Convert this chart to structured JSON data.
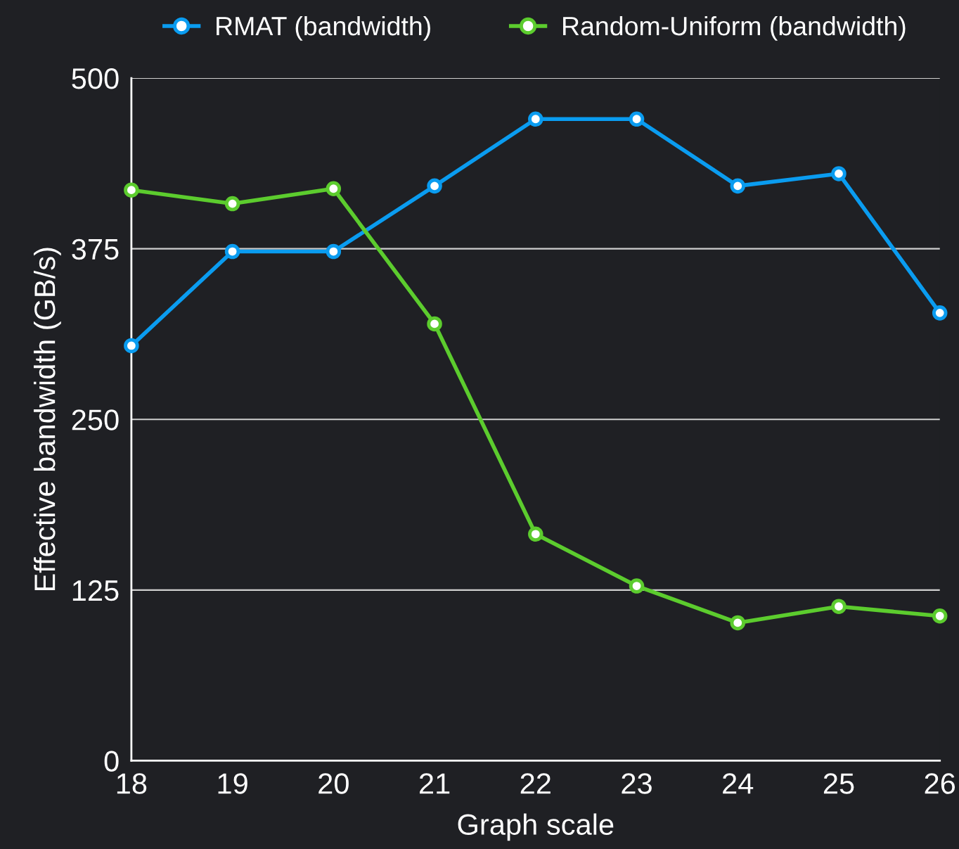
{
  "chart_data": {
    "type": "line",
    "xlabel": "Graph scale",
    "ylabel": "Effective bandwidth (GB/s)",
    "x": [
      18,
      19,
      20,
      21,
      22,
      23,
      24,
      25,
      26
    ],
    "series": [
      {
        "name": "RMAT (bandwidth)",
        "color": "#0a9cf0",
        "values": [
          304,
          373,
          373,
          421,
          470,
          470,
          421,
          430,
          328
        ]
      },
      {
        "name": "Random-Uniform (bandwidth)",
        "color": "#5ccc2e",
        "values": [
          418,
          408,
          419,
          320,
          166,
          128,
          101,
          113,
          106
        ]
      }
    ],
    "xlim": [
      18,
      26
    ],
    "xticks": [
      18,
      19,
      20,
      21,
      22,
      23,
      24,
      25,
      26
    ],
    "ylim": [
      0,
      500
    ],
    "yticks": [
      0,
      125,
      250,
      375,
      500
    ],
    "grid": "y",
    "legend": "top",
    "marker": "circle",
    "line_style": "solid"
  }
}
